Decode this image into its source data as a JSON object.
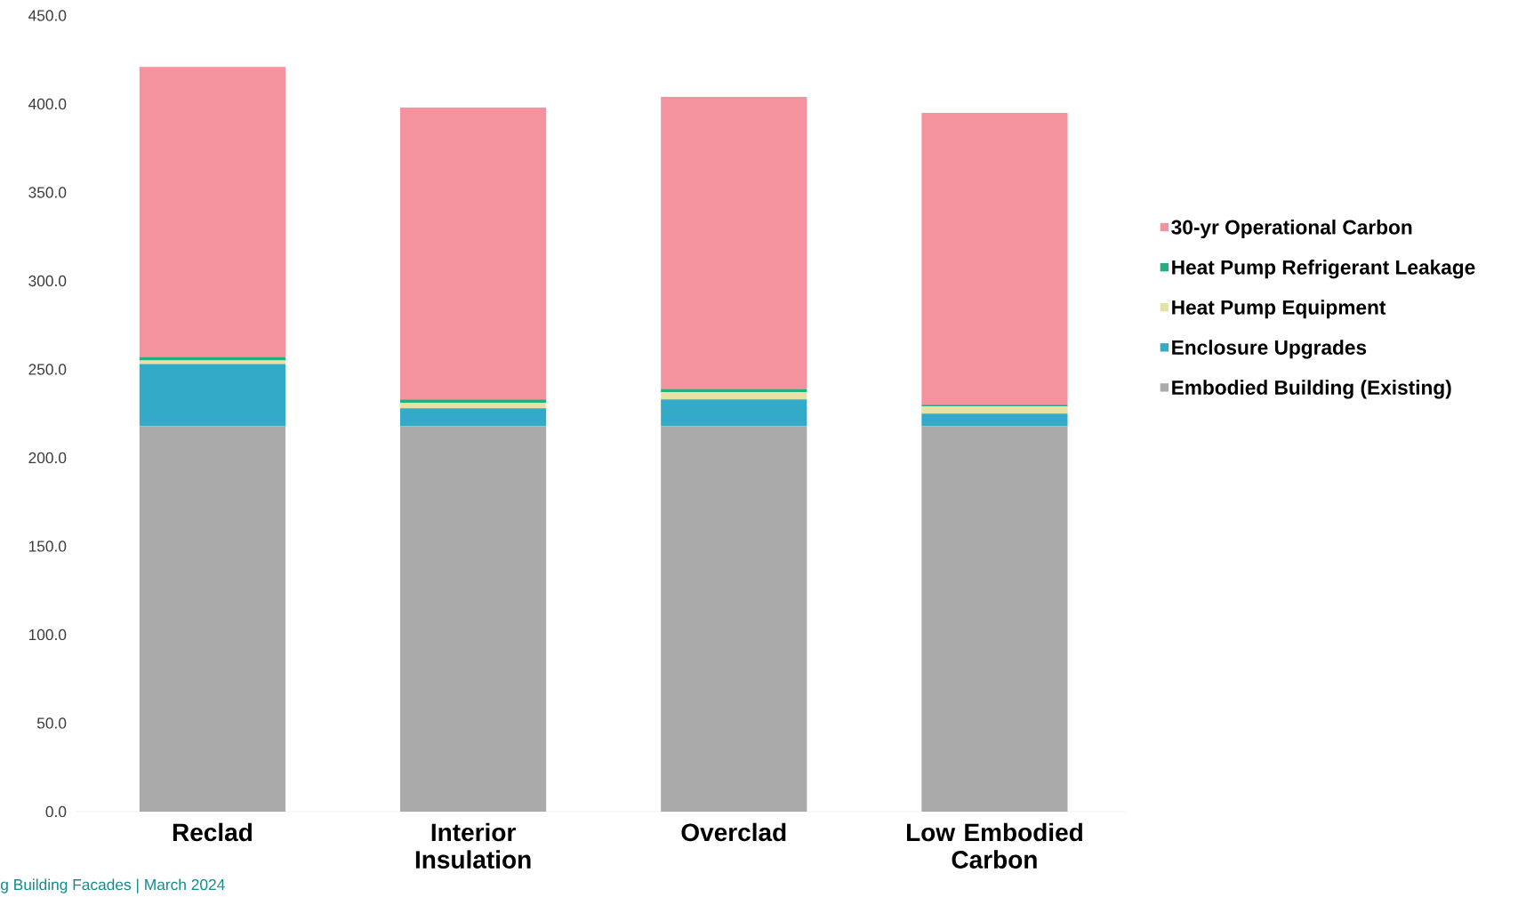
{
  "chart_data": {
    "type": "bar",
    "stacked": true,
    "categories": [
      "Reclad",
      "Interior Insulation",
      "Overclad",
      "Low Embodied Carbon"
    ],
    "series": [
      {
        "name": "Embodied Building (Existing)",
        "color": "#aaaaaa",
        "values": [
          218,
          218,
          218,
          218
        ]
      },
      {
        "name": "Enclosure Upgrades",
        "color": "#33aac8",
        "values": [
          35,
          10,
          15,
          7
        ]
      },
      {
        "name": "Heat Pump Equipment",
        "color": "#e6e2a6",
        "values": [
          2,
          3,
          4,
          4
        ]
      },
      {
        "name": "Heat Pump Refrigerant Leakage",
        "color": "#22b07e",
        "values": [
          2,
          2,
          2,
          1
        ]
      },
      {
        "name": "30-yr Operational Carbon",
        "color": "#f4939d",
        "values": [
          164,
          165,
          165,
          165
        ]
      }
    ],
    "ylim": [
      0,
      450
    ],
    "yticks": [
      {
        "value": 0,
        "label": "0.0"
      },
      {
        "value": 50,
        "label": "50.0"
      },
      {
        "value": 100,
        "label": "100.0"
      },
      {
        "value": 150,
        "label": "150.0"
      },
      {
        "value": 200,
        "label": "200.0"
      },
      {
        "value": 250,
        "label": "250.0"
      },
      {
        "value": 300,
        "label": "300.0"
      },
      {
        "value": 350,
        "label": "350.0"
      },
      {
        "value": 400,
        "label": "400.0"
      },
      {
        "value": 450,
        "label": "450.0"
      }
    ],
    "legend": "right",
    "annotations": [
      "g Building Facades | March 2024"
    ]
  }
}
